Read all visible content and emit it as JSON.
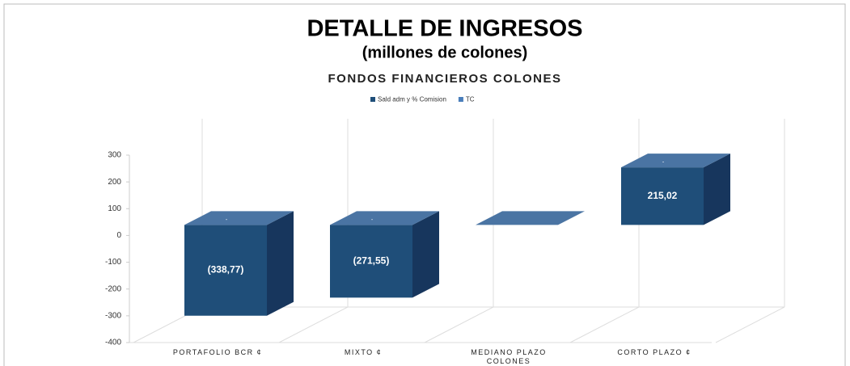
{
  "chart_data": {
    "type": "bar3d",
    "title": "DETALLE DE INGRESOS",
    "subtitle": "(millones de colones)",
    "chart_title": "FONDOS FINANCIEROS COLONES",
    "categories": [
      "PORTAFOLIO BCR ¢",
      "MIXTO ¢",
      "MEDIANO PLAZO COLONES",
      "CORTO PLAZO ¢"
    ],
    "series": [
      {
        "name": "Sald adm y %  Comision",
        "color": "#1f4e79",
        "values": [
          -338.77,
          -271.55,
          0,
          215.02
        ],
        "value_labels": [
          "(338,77)",
          "(271,55)",
          null,
          "215,02"
        ]
      },
      {
        "name": "TC",
        "color": "#4a7ebb",
        "values": [
          0,
          0,
          0,
          0
        ],
        "value_labels": [
          "-",
          "-",
          null,
          "-"
        ]
      }
    ],
    "ylim": [
      -400,
      300
    ],
    "yticks": [
      -400,
      -300,
      -200,
      -100,
      0,
      100,
      200,
      300
    ],
    "grid": true
  }
}
